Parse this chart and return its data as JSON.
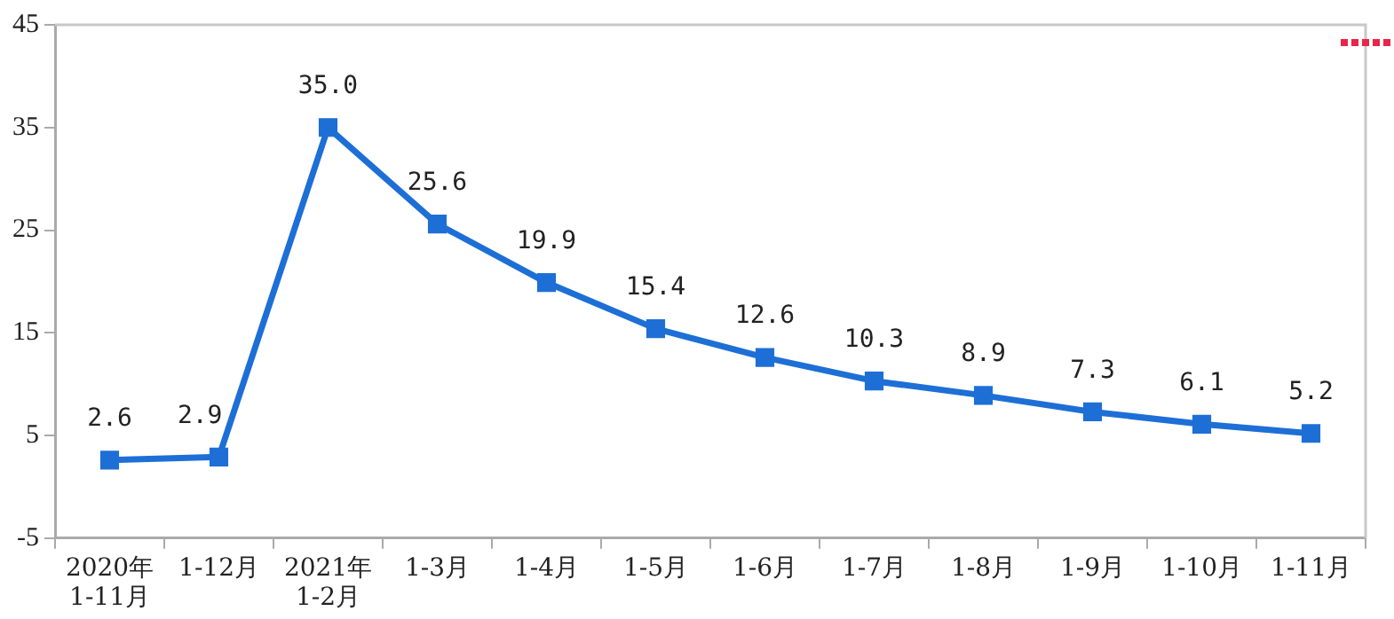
{
  "chart_data": {
    "type": "line",
    "categories": [
      "2020年\n1-11月",
      "1-12月",
      "2021年\n1-2月",
      "1-3月",
      "1-4月",
      "1-5月",
      "1-6月",
      "1-7月",
      "1-8月",
      "1-9月",
      "1-10月",
      "1-11月"
    ],
    "series": [
      {
        "color": "#1d6fd6",
        "values": [
          2.6,
          2.9,
          35.0,
          25.6,
          19.9,
          15.4,
          12.6,
          10.3,
          8.9,
          7.3,
          6.1,
          5.2
        ]
      }
    ],
    "value_labels": [
      "2.6",
      "2.9",
      "35.0",
      "25.6",
      "19.9",
      "15.4",
      "12.6",
      "10.3",
      "8.9",
      "7.3",
      "6.1",
      "5.2"
    ],
    "ylim": [
      -5,
      45
    ],
    "yticks": [
      -5,
      5,
      15,
      25,
      35,
      45
    ],
    "grid": false,
    "legend": false,
    "marker": "square",
    "line_style": "solid"
  }
}
